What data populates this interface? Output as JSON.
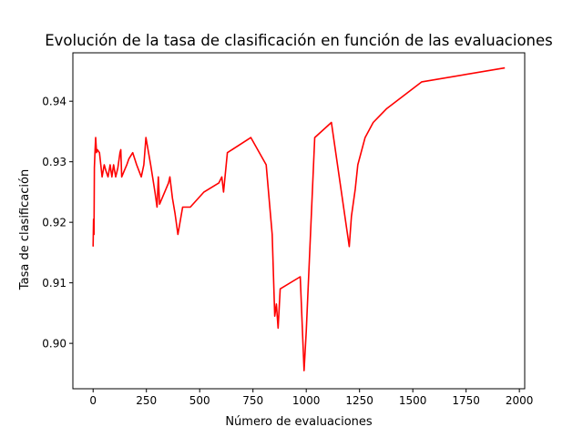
{
  "chart_data": {
    "type": "line",
    "title": "Evolución de la tasa de clasificación en función de las evaluaciones",
    "xlabel": "Número de evaluaciones",
    "ylabel": "Tasa de clasificación",
    "xlim": [
      -95,
      2025
    ],
    "ylim": [
      0.8925,
      0.948
    ],
    "xticks": [
      0,
      250,
      500,
      750,
      1000,
      1250,
      1500,
      1750,
      2000
    ],
    "xtick_labels": [
      "0",
      "250",
      "500",
      "750",
      "1000",
      "1250",
      "1500",
      "1750",
      "2000"
    ],
    "yticks": [
      0.9,
      0.91,
      0.92,
      0.93,
      0.94
    ],
    "ytick_labels": [
      "0.90",
      "0.91",
      "0.92",
      "0.93",
      "0.94"
    ],
    "grid": false,
    "legend": null,
    "series": [
      {
        "color": "#ff0000",
        "x": [
          0,
          2,
          4,
          6,
          8,
          12,
          16,
          20,
          30,
          42,
          52,
          60,
          70,
          80,
          88,
          96,
          106,
          116,
          126,
          130,
          134,
          146,
          158,
          168,
          186,
          204,
          226,
          238,
          248,
          270,
          290,
          300,
          306,
          312,
          336,
          354,
          360,
          372,
          384,
          398,
          420,
          456,
          520,
          590,
          604,
          612,
          630,
          740,
          812,
          840,
          852,
          860,
          868,
          878,
          972,
          990,
          1000,
          1040,
          1118,
          1202,
          1212,
          1230,
          1242,
          1276,
          1314,
          1378,
          1542,
          1932
        ],
        "y": [
          0.916,
          0.9205,
          0.918,
          0.929,
          0.931,
          0.934,
          0.9315,
          0.932,
          0.9315,
          0.9275,
          0.9295,
          0.9285,
          0.9275,
          0.9295,
          0.9275,
          0.9295,
          0.9275,
          0.929,
          0.9315,
          0.932,
          0.9275,
          0.9285,
          0.9295,
          0.9305,
          0.9315,
          0.9295,
          0.9275,
          0.9295,
          0.934,
          0.9295,
          0.925,
          0.9225,
          0.9275,
          0.923,
          0.925,
          0.9265,
          0.9275,
          0.924,
          0.9215,
          0.918,
          0.9225,
          0.9225,
          0.925,
          0.9265,
          0.9275,
          0.925,
          0.9315,
          0.934,
          0.9295,
          0.918,
          0.9045,
          0.9065,
          0.9025,
          0.909,
          0.911,
          0.8955,
          0.902,
          0.934,
          0.9365,
          0.916,
          0.921,
          0.9255,
          0.9295,
          0.934,
          0.9365,
          0.9388,
          0.9432,
          0.9455
        ]
      }
    ]
  }
}
